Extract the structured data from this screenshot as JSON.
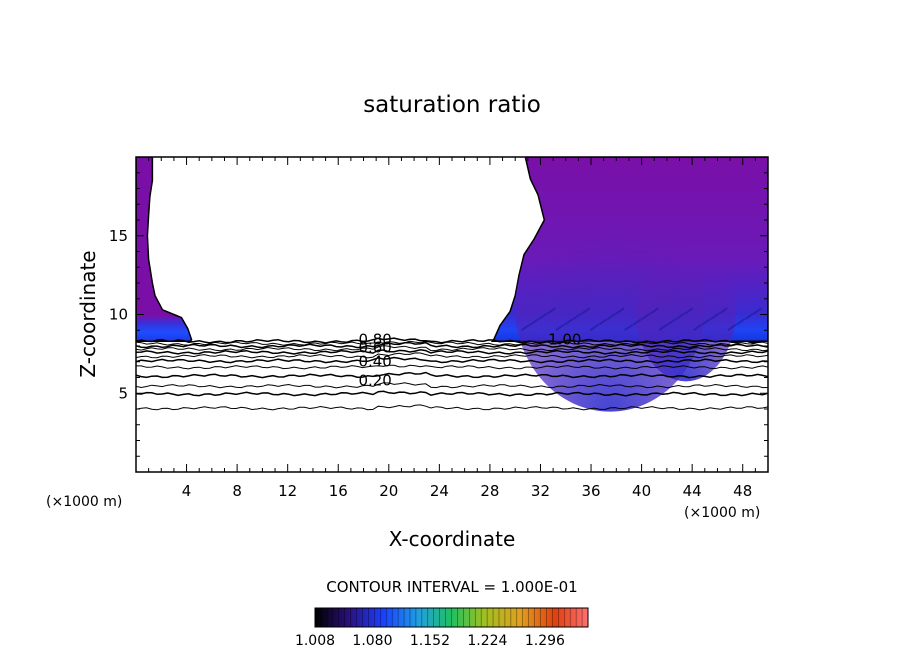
{
  "chart_data": {
    "type": "heatmap",
    "title": "saturation ratio",
    "xlabel": "X-coordinate",
    "ylabel": "Z-coordinate",
    "x_unit_left": "(×1000 m)",
    "x_unit_right": "(×1000 m)",
    "xlim": [
      0,
      50
    ],
    "ylim": [
      0,
      20
    ],
    "x_ticks": [
      4,
      8,
      12,
      16,
      20,
      24,
      28,
      32,
      36,
      40,
      44,
      48
    ],
    "y_ticks": [
      5,
      10,
      15
    ],
    "contour_interval_text": "CONTOUR INTERVAL = 1.000E-01",
    "contour_labels": [
      {
        "text": "0.80",
        "x": 17.6,
        "z": 8.1
      },
      {
        "text": "0.60",
        "x": 17.6,
        "z": 7.6
      },
      {
        "text": "0.40",
        "x": 17.6,
        "z": 6.7
      },
      {
        "text": "0.20",
        "x": 17.6,
        "z": 5.5
      },
      {
        "text": "1.00",
        "x": 32.6,
        "z": 8.1
      }
    ],
    "contour_levels_z": [
      8.3,
      8.15,
      8.0,
      7.8,
      7.6,
      7.35,
      7.05,
      6.65,
      6.1,
      5.45,
      4.95,
      4.05
    ],
    "colorbar": {
      "min": 1.008,
      "max": 1.35,
      "tick_labels": [
        "1.008",
        "1.080",
        "1.152",
        "1.224",
        "1.296"
      ],
      "tick_values": [
        1.008,
        1.08,
        1.152,
        1.224,
        1.296
      ]
    },
    "regions": {
      "left_supersat_outline": [
        [
          0,
          20
        ],
        [
          1.3,
          20
        ],
        [
          1.3,
          18.5
        ],
        [
          1.1,
          17.5
        ],
        [
          1.0,
          16.3
        ],
        [
          0.9,
          15.0
        ],
        [
          1.0,
          13.5
        ],
        [
          1.3,
          12.0
        ],
        [
          1.5,
          11.2
        ],
        [
          2.1,
          10.3
        ],
        [
          3.0,
          10.0
        ],
        [
          3.6,
          9.8
        ],
        [
          4.1,
          9.1
        ],
        [
          4.4,
          8.4
        ],
        [
          4.3,
          8.3
        ],
        [
          0,
          8.3
        ]
      ],
      "right_supersat_outline": [
        [
          50,
          20
        ],
        [
          30.8,
          20
        ],
        [
          31.2,
          18.6
        ],
        [
          31.8,
          17.6
        ],
        [
          32.3,
          16.0
        ],
        [
          31.5,
          14.8
        ],
        [
          30.7,
          13.8
        ],
        [
          30.3,
          12.5
        ],
        [
          30.0,
          11.2
        ],
        [
          29.6,
          10.2
        ],
        [
          28.8,
          9.3
        ],
        [
          28.3,
          8.4
        ],
        [
          28.2,
          8.3
        ],
        [
          50,
          8.3
        ]
      ],
      "supersat_base_z": 8.3
    },
    "grid": false
  }
}
